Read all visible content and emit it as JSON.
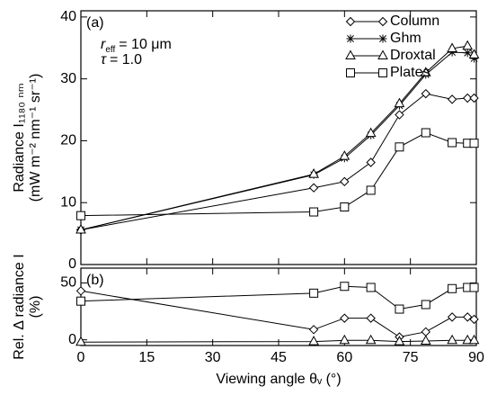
{
  "chart_data": [
    {
      "type": "line",
      "panel_label": "(a)",
      "annotations": [
        {
          "text": "r",
          "sub": "eff",
          "rest": "= 10 μm"
        },
        {
          "text": "τ",
          "rest": "= 1.0"
        }
      ],
      "ylabel": [
        "Radiance I₁₁₈₀ ₙₘ",
        "(mW m⁻² nm⁻¹ sr⁻¹)"
      ],
      "x": [
        0,
        53,
        60,
        66,
        72.5,
        78.5,
        84.5,
        88,
        89.5
      ],
      "xlim": [
        0,
        90
      ],
      "xticks": [
        0,
        15,
        30,
        45,
        60,
        75,
        90
      ],
      "ylim": [
        0,
        41
      ],
      "yticks": [
        0,
        10,
        20,
        30,
        40
      ],
      "legend": "upper right",
      "series": [
        {
          "name": "Column",
          "marker": "diamond",
          "color": "#000000",
          "values": [
            5.6,
            12.4,
            13.4,
            16.5,
            24.2,
            27.6,
            26.7,
            26.9,
            26.9
          ]
        },
        {
          "name": "Ghm",
          "marker": "asterisk",
          "color": "#000000",
          "values": [
            5.6,
            14.5,
            17.2,
            20.9,
            25.7,
            30.7,
            34.3,
            34.2,
            33.3
          ]
        },
        {
          "name": "Droxtal",
          "marker": "triangle",
          "color": "#000000",
          "values": [
            5.6,
            14.6,
            17.5,
            21.2,
            26,
            31,
            34.9,
            35.3,
            33.9
          ]
        },
        {
          "name": "Plates",
          "marker": "square",
          "color": "#000000",
          "values": [
            7.9,
            8.5,
            9.3,
            12,
            19,
            21.3,
            19.7,
            19.6,
            19.6
          ]
        }
      ]
    },
    {
      "type": "line",
      "panel_label": "(b)",
      "ylabel": [
        "Rel. Δ radiance I",
        "(%)"
      ],
      "xlabel": "Viewing angle θᵥ (°)",
      "x": [
        0,
        53,
        60,
        66,
        72.5,
        78.5,
        84.5,
        88,
        89.5
      ],
      "xlim": [
        0,
        90
      ],
      "xticks": [
        0,
        15,
        30,
        45,
        60,
        75,
        90
      ],
      "ylim": [
        -5,
        63
      ],
      "yticks": [
        0,
        50
      ],
      "series": [
        {
          "name": "Column",
          "marker": "diamond",
          "color": "#000000",
          "values": [
            43,
            9,
            19,
            19,
            2.5,
            7,
            20,
            20,
            18
          ]
        },
        {
          "name": "Droxtal",
          "marker": "triangle",
          "color": "#000000",
          "values": [
            -2,
            -1.5,
            -0.5,
            -0.5,
            -1.5,
            -1,
            -0.5,
            -0.5,
            -0.5
          ]
        },
        {
          "name": "Plates",
          "marker": "square",
          "color": "#000000",
          "values": [
            34,
            41,
            47,
            46,
            27,
            31,
            45,
            46,
            46
          ]
        }
      ]
    }
  ]
}
